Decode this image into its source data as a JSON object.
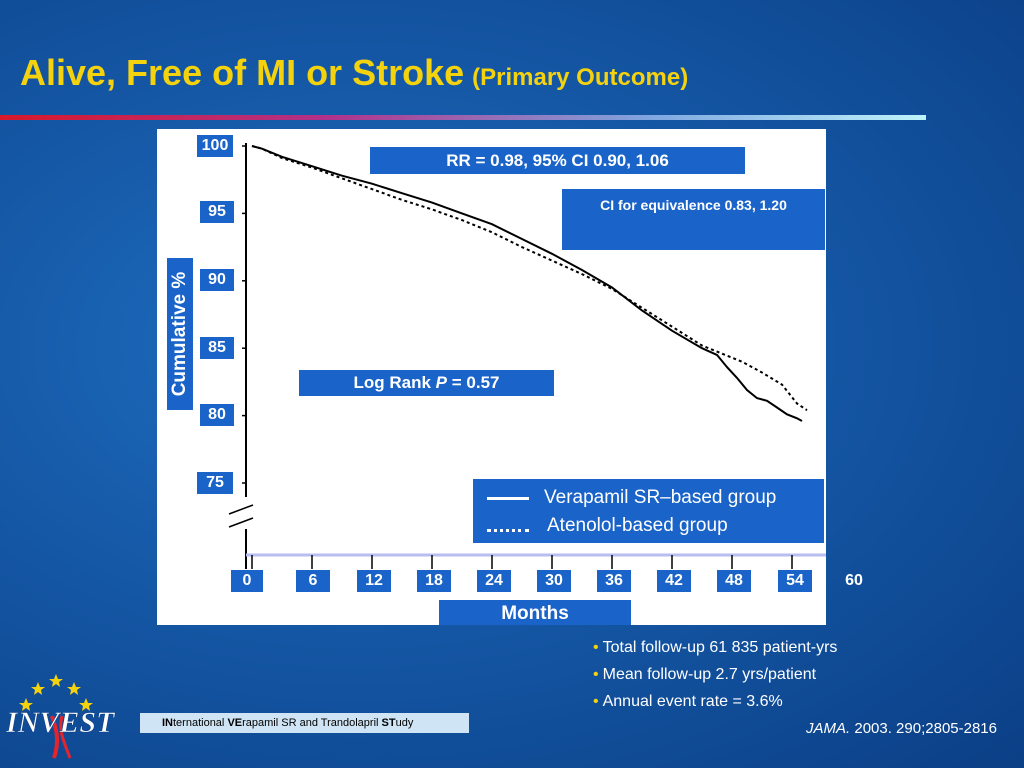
{
  "slide": {
    "title_main": "Alive, Free of MI or Stroke",
    "title_sub": "(Primary Outcome)"
  },
  "chart_data": {
    "type": "line",
    "xlabel": "Months",
    "ylabel": "Cumulative %",
    "xlim": [
      0,
      60
    ],
    "ylim": [
      75,
      100
    ],
    "x_ticks": [
      "0",
      "6",
      "12",
      "18",
      "24",
      "30",
      "36",
      "42",
      "48",
      "54",
      "60"
    ],
    "y_ticks": [
      "100",
      "95",
      "90",
      "85",
      "80",
      "75"
    ],
    "series": [
      {
        "name": "Verapamil SR–based group",
        "style": "solid",
        "color": "#000000",
        "x": [
          0,
          1,
          3,
          6,
          9,
          12,
          15,
          18,
          21,
          24,
          27,
          30,
          33,
          36,
          39,
          42,
          45,
          46.5,
          47.5,
          48.5,
          49.5,
          50.5,
          51.5,
          52.5,
          53.5,
          54.5,
          55
        ],
        "y": [
          100,
          99.8,
          99.2,
          98.5,
          97.8,
          97.2,
          96.5,
          95.8,
          95.0,
          94.2,
          93.1,
          92.0,
          90.8,
          89.5,
          87.8,
          86.3,
          85.0,
          84.5,
          83.6,
          82.8,
          81.9,
          81.3,
          81.1,
          80.6,
          80.1,
          79.8,
          79.6
        ]
      },
      {
        "name": "Atenolol-based group",
        "style": "dotted",
        "color": "#000000",
        "x": [
          0,
          1,
          3,
          6,
          9,
          12,
          15,
          18,
          21,
          24,
          27,
          30,
          33,
          36,
          39,
          42,
          45,
          47,
          49,
          51,
          53,
          54.5,
          55.5
        ],
        "y": [
          100,
          99.8,
          99.1,
          98.4,
          97.6,
          96.8,
          96.0,
          95.3,
          94.5,
          93.6,
          92.5,
          91.5,
          90.5,
          89.4,
          88.0,
          86.6,
          85.2,
          84.6,
          84.0,
          83.2,
          82.3,
          80.9,
          80.4
        ]
      }
    ],
    "annotations": {
      "rr": "RR = 0.98, 95% CI 0.90, 1.06",
      "ci_equivalence": "CI for equivalence 0.83, 1.20",
      "log_rank_prefix": "Log Rank ",
      "log_rank_p": "P",
      "log_rank_suffix": " = 0.57"
    }
  },
  "notes": {
    "bullets": [
      "Total follow-up 61 835 patient-yrs",
      "Mean follow-up 2.7 yrs/patient",
      "Annual event rate = 3.6%"
    ],
    "citation_journal": "JAMA.",
    "citation_ref": " 2003. 290;2805-2816"
  },
  "footer": {
    "study_parts": [
      {
        "t": "IN",
        "b": true
      },
      {
        "t": "ternational ",
        "b": false
      },
      {
        "t": "VE",
        "b": true
      },
      {
        "t": "rapamil SR and Trandolapril ",
        "b": false
      },
      {
        "t": "ST",
        "b": true
      },
      {
        "t": "udy",
        "b": false
      }
    ],
    "logo_text": "INVEST"
  },
  "colors": {
    "title": "#f4d20e",
    "box_blue": "#1a63c8",
    "bullet_dot": "#f4d20e"
  }
}
